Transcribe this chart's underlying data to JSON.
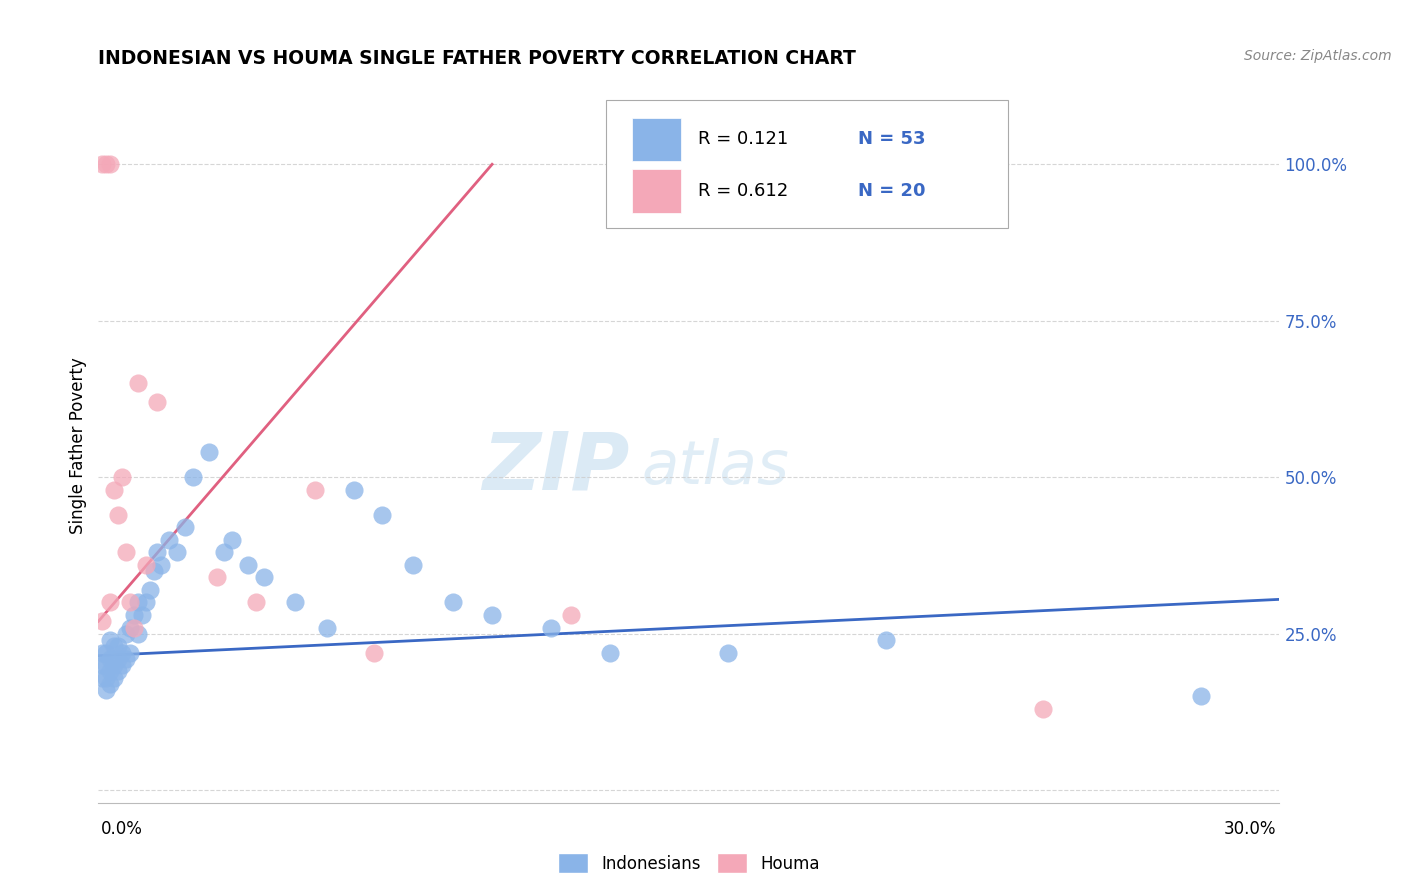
{
  "title": "INDONESIAN VS HOUMA SINGLE FATHER POVERTY CORRELATION CHART",
  "source_text": "Source: ZipAtlas.com",
  "ylabel": "Single Father Poverty",
  "xlim": [
    0.0,
    0.3
  ],
  "ylim": [
    -0.02,
    1.12
  ],
  "blue_color": "#8ab4e8",
  "pink_color": "#f4a8b8",
  "blue_line_color": "#3a68c4",
  "pink_line_color": "#e06080",
  "text_blue": "#3a68c4",
  "legend_r_blue": "0.121",
  "legend_n_blue": "53",
  "legend_r_pink": "0.612",
  "legend_n_pink": "20",
  "blue_line_x0": 0.0,
  "blue_line_x1": 0.3,
  "blue_line_y0": 0.215,
  "blue_line_y1": 0.305,
  "pink_line_x0": 0.0,
  "pink_line_x1": 0.1,
  "pink_line_y0": 0.27,
  "pink_line_y1": 1.0,
  "indonesians_x": [
    0.001,
    0.001,
    0.001,
    0.002,
    0.002,
    0.002,
    0.002,
    0.003,
    0.003,
    0.003,
    0.003,
    0.004,
    0.004,
    0.004,
    0.005,
    0.005,
    0.005,
    0.006,
    0.006,
    0.007,
    0.007,
    0.008,
    0.008,
    0.009,
    0.01,
    0.01,
    0.011,
    0.012,
    0.013,
    0.014,
    0.015,
    0.016,
    0.018,
    0.02,
    0.022,
    0.024,
    0.028,
    0.032,
    0.034,
    0.038,
    0.042,
    0.05,
    0.058,
    0.065,
    0.072,
    0.08,
    0.09,
    0.1,
    0.115,
    0.13,
    0.16,
    0.2,
    0.28
  ],
  "indonesians_y": [
    0.18,
    0.2,
    0.22,
    0.16,
    0.18,
    0.2,
    0.22,
    0.17,
    0.19,
    0.21,
    0.24,
    0.18,
    0.2,
    0.23,
    0.19,
    0.21,
    0.23,
    0.2,
    0.22,
    0.21,
    0.25,
    0.22,
    0.26,
    0.28,
    0.25,
    0.3,
    0.28,
    0.3,
    0.32,
    0.35,
    0.38,
    0.36,
    0.4,
    0.38,
    0.42,
    0.5,
    0.54,
    0.38,
    0.4,
    0.36,
    0.34,
    0.3,
    0.26,
    0.48,
    0.44,
    0.36,
    0.3,
    0.28,
    0.26,
    0.22,
    0.22,
    0.24,
    0.15
  ],
  "houma_x": [
    0.001,
    0.001,
    0.002,
    0.003,
    0.003,
    0.004,
    0.005,
    0.006,
    0.007,
    0.008,
    0.009,
    0.01,
    0.012,
    0.015,
    0.03,
    0.04,
    0.055,
    0.07,
    0.12,
    0.24
  ],
  "houma_y": [
    1.0,
    0.27,
    1.0,
    1.0,
    0.3,
    0.48,
    0.44,
    0.5,
    0.38,
    0.3,
    0.26,
    0.65,
    0.36,
    0.62,
    0.34,
    0.3,
    0.48,
    0.22,
    0.28,
    0.13
  ],
  "watermark_zip": "ZIP",
  "watermark_atlas": "atlas",
  "background_color": "#ffffff",
  "grid_color": "#cccccc"
}
